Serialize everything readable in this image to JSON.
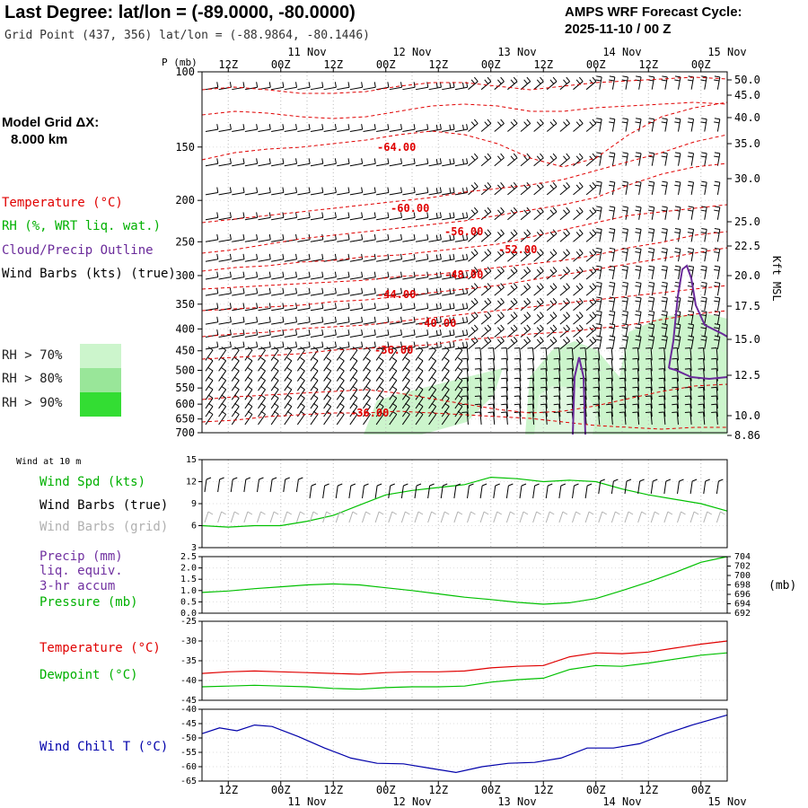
{
  "header": {
    "title": "Last Degree:  lat/lon = (-89.0000, -80.0000)",
    "grid_point": "Grid Point (437, 356) lat/lon = (-88.9864, -80.1446)",
    "cycle_line1": "AMPS WRF Forecast Cycle:",
    "cycle_line2": "2025-11-10 / 00  Z"
  },
  "model_grid": {
    "label": "Model Grid ΔX:",
    "value": "8.000 km"
  },
  "legend": {
    "temperature": "Temperature (°C)",
    "rh": "RH (%, WRT liq. wat.)",
    "cloud": "Cloud/Precip Outline",
    "wind_barbs": "Wind Barbs (kts) (true)",
    "rh70": "RH > 70%",
    "rh80": "RH > 80%",
    "rh90": "RH > 90%"
  },
  "colors": {
    "temperature": "#e00000",
    "rh_label": "#00b000",
    "cloud": "#6a2a9a",
    "rh70": "#ccf5cc",
    "rh80": "#99e699",
    "rh90": "#33dd33",
    "dewpoint": "#00c000",
    "windchill": "#0000aa",
    "precip": "#7030a0",
    "grid_barbs": "#b0b0b0"
  },
  "time_axis": {
    "top_tick_labels": [
      "12Z",
      "00Z",
      "12Z",
      "00Z",
      "12Z",
      "00Z",
      "12Z",
      "00Z",
      "12Z",
      "00Z"
    ],
    "top_day_labels": [
      "11 Nov",
      "12 Nov",
      "13 Nov",
      "14 Nov",
      "15 Nov"
    ],
    "bottom_tick_labels": [
      "12Z",
      "00Z",
      "12Z",
      "00Z",
      "12Z",
      "00Z",
      "12Z",
      "00Z",
      "12Z",
      "00Z"
    ],
    "bottom_day_labels": [
      "11 Nov",
      "12 Nov",
      "13 Nov",
      "14 Nov",
      "15 Nov"
    ]
  },
  "chart_data": [
    {
      "type": "contour-section",
      "name": "upper-air-cross-section",
      "x_range_hours": [
        0,
        120
      ],
      "y_axis_label": "P (mb)",
      "y_ticks": [
        "100",
        "150",
        "200",
        "250",
        "300",
        "350",
        "400",
        "450",
        "500",
        "550",
        "600",
        "650",
        "700"
      ],
      "right_axis_label": "Kft MSL",
      "right_ticks": [
        "50.0",
        "45.0",
        "40.0",
        "35.0",
        "30.0",
        "25.0",
        "22.5",
        "20.0",
        "17.5",
        "15.0",
        "12.5",
        "10.0",
        "8.86"
      ],
      "temperature_contour_labels": [
        "-64.00",
        "-60.00",
        "-56.00",
        "-52.00",
        "-48.00",
        "-44.00",
        "-40.00",
        "-36.00",
        "-36.00"
      ],
      "temperature_contours_c": [
        -68,
        -64,
        -60,
        -56,
        -52,
        -48,
        -44,
        -40,
        -36,
        -32
      ]
    },
    {
      "type": "line",
      "name": "wind-10m",
      "panel_title": "Wind at 10 m",
      "legend": [
        "Wind Spd (kts)",
        "Wind Barbs (true)",
        "Wind Barbs (grid)"
      ],
      "y_ticks": [
        "15",
        "12",
        "9",
        "6",
        "3"
      ],
      "ylim": [
        3,
        15
      ],
      "x_hours": [
        0,
        6,
        12,
        18,
        24,
        30,
        36,
        42,
        48,
        54,
        60,
        66,
        72,
        78,
        84,
        90,
        96,
        102,
        108,
        114,
        120
      ],
      "series": [
        {
          "name": "Wind Spd (kts)",
          "values": [
            6.0,
            5.8,
            6.0,
            6.0,
            6.6,
            7.4,
            8.8,
            10.2,
            10.8,
            11.2,
            11.6,
            12.6,
            12.4,
            12.0,
            12.2,
            12.0,
            11.0,
            10.2,
            9.6,
            9.0,
            8.0
          ]
        }
      ]
    },
    {
      "type": "line",
      "name": "precip-pressure",
      "legend": [
        "Precip (mm)",
        "liq. equiv.",
        "3-hr accum",
        "Pressure (mb)"
      ],
      "y_ticks_left": [
        "2.5",
        "2.0",
        "1.5",
        "1.0",
        "0.5",
        "0.0"
      ],
      "y_ticks_right": [
        "704",
        "702",
        "700",
        "698",
        "696",
        "694",
        "692"
      ],
      "ylim_left": [
        0,
        2.5
      ],
      "ylim_right": [
        692,
        704
      ],
      "right_axis_unit": "(mb)",
      "x_hours": [
        0,
        6,
        12,
        18,
        24,
        30,
        36,
        42,
        48,
        54,
        60,
        66,
        72,
        78,
        84,
        90,
        96,
        102,
        108,
        114,
        120
      ],
      "series": [
        {
          "name": "Pressure (mb)",
          "values": [
            696.4,
            696.7,
            697.2,
            697.6,
            698.0,
            698.2,
            698.0,
            697.4,
            696.8,
            696.1,
            695.4,
            694.9,
            694.3,
            693.9,
            694.2,
            695.1,
            696.8,
            698.6,
            700.6,
            702.8,
            704.0
          ]
        }
      ]
    },
    {
      "type": "line",
      "name": "temp-dewpoint",
      "legend": [
        "Temperature (°C)",
        "Dewpoint (°C)"
      ],
      "y_ticks": [
        "-25",
        "-30",
        "-35",
        "-40",
        "-45"
      ],
      "ylim": [
        -45,
        -25
      ],
      "x_hours": [
        0,
        6,
        12,
        18,
        24,
        30,
        36,
        42,
        48,
        54,
        60,
        66,
        72,
        78,
        84,
        90,
        96,
        102,
        108,
        114,
        120
      ],
      "series": [
        {
          "name": "Temperature (°C)",
          "values": [
            -38.2,
            -37.8,
            -37.6,
            -37.8,
            -38.0,
            -38.2,
            -38.4,
            -38.0,
            -37.8,
            -37.8,
            -37.6,
            -36.8,
            -36.4,
            -36.2,
            -34.0,
            -33.0,
            -33.2,
            -32.8,
            -31.8,
            -30.8,
            -30.0
          ]
        },
        {
          "name": "Dewpoint (°C)",
          "values": [
            -41.6,
            -41.4,
            -41.2,
            -41.4,
            -41.6,
            -42.0,
            -42.2,
            -41.8,
            -41.6,
            -41.6,
            -41.4,
            -40.4,
            -39.8,
            -39.4,
            -37.2,
            -36.2,
            -36.4,
            -35.6,
            -34.6,
            -33.6,
            -33.0
          ]
        }
      ]
    },
    {
      "type": "line",
      "name": "wind-chill",
      "legend": [
        "Wind Chill T (°C)"
      ],
      "y_ticks": [
        "-40",
        "-45",
        "-50",
        "-55",
        "-60",
        "-65"
      ],
      "ylim": [
        -65,
        -40
      ],
      "x_hours": [
        0,
        4,
        8,
        12,
        16,
        22,
        28,
        34,
        40,
        46,
        52,
        58,
        64,
        70,
        76,
        82,
        88,
        94,
        100,
        106,
        112,
        120
      ],
      "series": [
        {
          "name": "Wind Chill T (°C)",
          "values": [
            -48.5,
            -46.5,
            -47.5,
            -45.5,
            -46.0,
            -49.5,
            -53.5,
            -57.0,
            -58.8,
            -59.0,
            -60.5,
            -62.0,
            -60.0,
            -58.8,
            -58.5,
            -57.0,
            -53.5,
            -53.5,
            -52.0,
            -48.5,
            -45.5,
            -42.0
          ]
        }
      ]
    }
  ]
}
